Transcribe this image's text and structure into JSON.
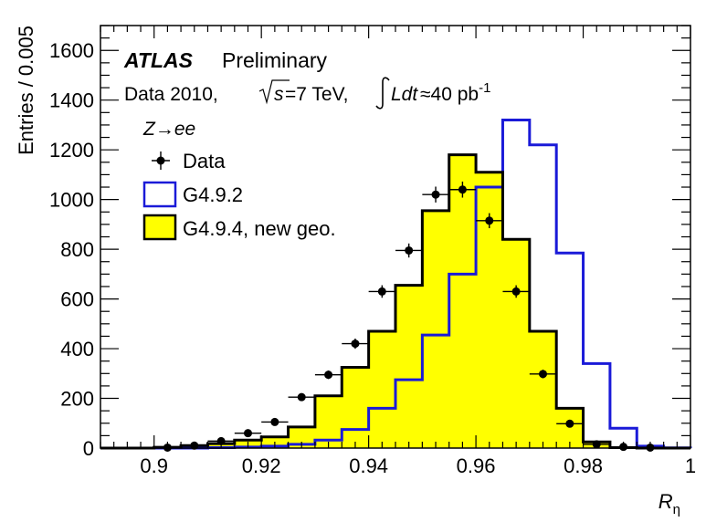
{
  "chart_data": {
    "type": "histogram",
    "xlabel": "R",
    "xlabel_sub": "η",
    "ylabel": "Entries / 0.005",
    "xlim": [
      0.89,
      1.0
    ],
    "ylim": [
      0,
      1700
    ],
    "x_ticks": [
      0.9,
      0.92,
      0.94,
      0.96,
      0.98,
      1
    ],
    "x_tick_labels": [
      "0.9",
      "0.92",
      "0.94",
      "0.96",
      "0.98",
      "1"
    ],
    "y_ticks": [
      0,
      200,
      400,
      600,
      800,
      1000,
      1200,
      1400,
      1600
    ],
    "y_tick_labels": [
      "0",
      "200",
      "400",
      "600",
      "800",
      "1000",
      "1200",
      "1400",
      "1600"
    ],
    "bin_edges": [
      0.89,
      0.895,
      0.9,
      0.905,
      0.91,
      0.915,
      0.92,
      0.925,
      0.93,
      0.935,
      0.94,
      0.945,
      0.95,
      0.955,
      0.96,
      0.965,
      0.97,
      0.975,
      0.98,
      0.985,
      0.99,
      0.995,
      1.0
    ],
    "annotation": {
      "experiment": "ATLAS",
      "status": "Preliminary",
      "dataset": "Data 2010,",
      "sqrt_s": "=7 TeV,",
      "lumi": "≈40 pb",
      "lumi_exp": "-1",
      "channel": "Z→ee"
    },
    "legend_position": "top-left",
    "series": [
      {
        "name": "Data",
        "style": "points",
        "color": "#000000",
        "x": [
          0.9025,
          0.9075,
          0.9125,
          0.9175,
          0.9225,
          0.9275,
          0.9325,
          0.9375,
          0.9425,
          0.9475,
          0.9525,
          0.9575,
          0.9625,
          0.9675,
          0.9725,
          0.9775,
          0.9825,
          0.9875,
          0.9925
        ],
        "values": [
          2,
          10,
          28,
          60,
          105,
          205,
          295,
          420,
          630,
          795,
          1020,
          1040,
          915,
          630,
          298,
          98,
          15,
          5,
          2
        ]
      },
      {
        "name": "G4.9.2",
        "style": "step",
        "color": "#1a1ad8",
        "values": [
          0,
          0,
          0,
          0,
          2,
          4,
          8,
          15,
          32,
          75,
          160,
          275,
          455,
          700,
          1050,
          1320,
          1220,
          785,
          340,
          80,
          8,
          1
        ]
      },
      {
        "name": "G4.9.4, new geo.",
        "style": "filled-step",
        "color": "#000000",
        "fill": "#ffff00",
        "values": [
          0,
          0,
          3,
          10,
          18,
          32,
          45,
          85,
          210,
          325,
          470,
          655,
          955,
          1180,
          1110,
          840,
          470,
          160,
          25,
          2,
          0,
          0
        ]
      }
    ]
  }
}
